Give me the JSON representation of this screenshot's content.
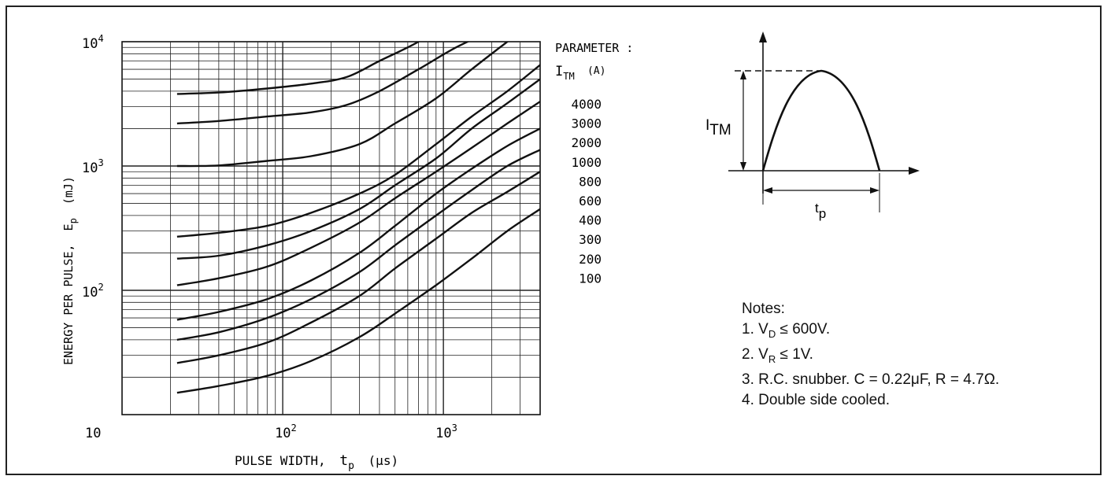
{
  "chart_data": {
    "type": "line",
    "xscale": "log",
    "yscale": "log",
    "xlabel": "PULSE WIDTH,",
    "xlabel_symbol": "t",
    "xlabel_symbol_sub": "p",
    "xlabel_unit": "(μs)",
    "ylabel": "ENERGY PER PULSE,",
    "ylabel_symbol": "E",
    "ylabel_symbol_sub": "p",
    "ylabel_unit": "(mJ)",
    "xlim": [
      10,
      4000
    ],
    "ylim": [
      10,
      10000
    ],
    "x_ticks": [
      {
        "value": 10,
        "base": "10",
        "exp": ""
      },
      {
        "value": 100,
        "base": "10",
        "exp": "2"
      },
      {
        "value": 1000,
        "base": "10",
        "exp": "3"
      }
    ],
    "y_ticks": [
      {
        "value": 100,
        "base": "10",
        "exp": "2"
      },
      {
        "value": 1000,
        "base": "10",
        "exp": "3"
      },
      {
        "value": 10000,
        "base": "10",
        "exp": "4"
      }
    ],
    "y_origin_label": "10",
    "grid": true,
    "legend_title_line1": "PARAMETER :",
    "legend_title_symbol": "I",
    "legend_title_sub": "TM",
    "legend_title_unit": "(A)",
    "series": [
      {
        "name": "4000",
        "x": [
          22,
          40,
          80,
          150,
          250,
          400,
          700,
          1100
        ],
        "y": [
          3800,
          3900,
          4200,
          4600,
          5200,
          7000,
          10000,
          15000
        ]
      },
      {
        "name": "3000",
        "x": [
          22,
          40,
          80,
          150,
          250,
          400,
          700,
          1200,
          2200
        ],
        "y": [
          2200,
          2300,
          2500,
          2700,
          3100,
          4000,
          6000,
          9000,
          13000
        ]
      },
      {
        "name": "2000",
        "x": [
          22,
          40,
          80,
          150,
          300,
          500,
          900,
          1500,
          2500,
          4000
        ],
        "y": [
          1000,
          1010,
          1100,
          1200,
          1500,
          2200,
          3500,
          6000,
          10000,
          16000
        ]
      },
      {
        "name": "1000",
        "x": [
          22,
          40,
          80,
          150,
          300,
          500,
          900,
          1500,
          2500,
          4000
        ],
        "y": [
          270,
          290,
          330,
          420,
          600,
          850,
          1500,
          2500,
          4000,
          6500
        ]
      },
      {
        "name": "800",
        "x": [
          22,
          40,
          80,
          150,
          300,
          500,
          900,
          1500,
          2500,
          4000
        ],
        "y": [
          180,
          190,
          230,
          300,
          450,
          700,
          1150,
          2000,
          3200,
          5000
        ]
      },
      {
        "name": "600",
        "x": [
          22,
          40,
          80,
          150,
          300,
          500,
          900,
          1500,
          2500,
          4000
        ],
        "y": [
          110,
          125,
          155,
          220,
          350,
          550,
          900,
          1400,
          2200,
          3300
        ]
      },
      {
        "name": "400",
        "x": [
          22,
          40,
          80,
          150,
          300,
          500,
          900,
          1500,
          2500,
          4000
        ],
        "y": [
          58,
          67,
          85,
          120,
          200,
          330,
          600,
          950,
          1450,
          2000
        ]
      },
      {
        "name": "300",
        "x": [
          22,
          40,
          80,
          150,
          300,
          500,
          900,
          1500,
          2500,
          4000
        ],
        "y": [
          40,
          46,
          60,
          85,
          140,
          230,
          400,
          640,
          1000,
          1350
        ]
      },
      {
        "name": "200",
        "x": [
          22,
          40,
          80,
          150,
          300,
          500,
          900,
          1500,
          2500,
          4000
        ],
        "y": [
          26,
          30,
          38,
          55,
          90,
          150,
          260,
          420,
          620,
          900
        ]
      },
      {
        "name": "100",
        "x": [
          22,
          40,
          80,
          150,
          300,
          500,
          900,
          1500,
          2500,
          4000
        ],
        "y": [
          15,
          17,
          20.5,
          27,
          42,
          65,
          110,
          180,
          300,
          450
        ]
      }
    ]
  },
  "pulse_diagram": {
    "current_symbol": "I",
    "current_sub": "TM",
    "width_symbol": "t",
    "width_sub": "p"
  },
  "notes": {
    "title": "Notes:",
    "items": [
      {
        "prefix": "1. V",
        "sub": "D",
        "suffix": " ≤ 600V."
      },
      {
        "prefix": "2. V",
        "sub": "R",
        "suffix": " ≤ 1V."
      },
      {
        "prefix": "3. R.C. snubber. C = 0.22μF, R = 4.7Ω.",
        "sub": "",
        "suffix": ""
      },
      {
        "prefix": "4. Double side cooled.",
        "sub": "",
        "suffix": ""
      }
    ]
  }
}
